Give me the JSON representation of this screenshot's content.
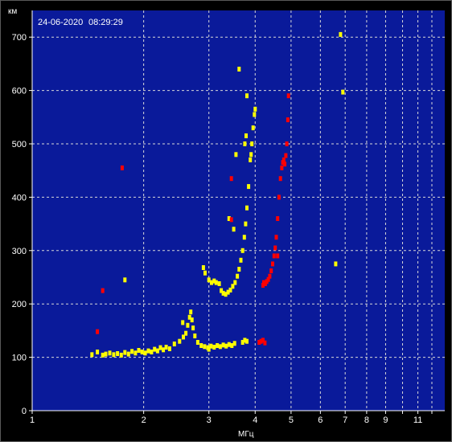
{
  "timestamp": {
    "date": "24-06-2020",
    "time": "08:29:29"
  },
  "colors": {
    "background": "#000000",
    "plot_area": "#0a1a9a",
    "grid": "#d8d8d8",
    "text": "#ffffff",
    "o_trace": "#ffff00",
    "x_trace": "#ff0000"
  },
  "chart_data": {
    "type": "scatter",
    "title": "",
    "x_scale": "log",
    "xlabel": "МГц",
    "ylabel": "км",
    "xlim": [
      1,
      13
    ],
    "ylim": [
      0,
      750
    ],
    "grid": true,
    "x_ticks": [
      {
        "value": 1,
        "label": "1"
      },
      {
        "value": 2,
        "label": "2"
      },
      {
        "value": 3,
        "label": "3"
      },
      {
        "value": 4,
        "label": "4"
      },
      {
        "value": 5,
        "label": "5"
      },
      {
        "value": 6,
        "label": "6"
      },
      {
        "value": 7,
        "label": "7"
      },
      {
        "value": 8,
        "label": "8"
      },
      {
        "value": 9,
        "label": "9"
      },
      {
        "value": 10,
        "label": ""
      },
      {
        "value": 11,
        "label": "11"
      },
      {
        "value": 12,
        "label": ""
      }
    ],
    "y_ticks": [
      {
        "value": 0,
        "label": "0"
      },
      {
        "value": 100,
        "label": "100"
      },
      {
        "value": 200,
        "label": "200"
      },
      {
        "value": 300,
        "label": "300"
      },
      {
        "value": 400,
        "label": "400"
      },
      {
        "value": 500,
        "label": "500"
      },
      {
        "value": 600,
        "label": "600"
      },
      {
        "value": 700,
        "label": "700"
      }
    ],
    "series": [
      {
        "color": "#ffff00",
        "points": [
          [
            1.45,
            105
          ],
          [
            1.55,
            104
          ],
          [
            1.58,
            106
          ],
          [
            1.62,
            108
          ],
          [
            1.66,
            105
          ],
          [
            1.7,
            107
          ],
          [
            1.74,
            104
          ],
          [
            1.78,
            109
          ],
          [
            1.82,
            106
          ],
          [
            1.86,
            111
          ],
          [
            1.9,
            108
          ],
          [
            1.94,
            113
          ],
          [
            1.98,
            110
          ],
          [
            2.02,
            108
          ],
          [
            2.06,
            112
          ],
          [
            2.1,
            110
          ],
          [
            2.14,
            115
          ],
          [
            2.18,
            112
          ],
          [
            2.22,
            118
          ],
          [
            2.26,
            114
          ],
          [
            2.3,
            119
          ],
          [
            2.35,
            116
          ],
          [
            2.42,
            125
          ],
          [
            2.5,
            130
          ],
          [
            2.56,
            138
          ],
          [
            2.6,
            145
          ],
          [
            2.63,
            160
          ],
          [
            2.66,
            175
          ],
          [
            2.68,
            185
          ],
          [
            2.7,
            170
          ],
          [
            2.72,
            155
          ],
          [
            2.75,
            140
          ],
          [
            2.8,
            128
          ],
          [
            2.86,
            122
          ],
          [
            2.92,
            120
          ],
          [
            2.98,
            118
          ],
          [
            3.04,
            121
          ],
          [
            3.1,
            119
          ],
          [
            3.16,
            122
          ],
          [
            3.22,
            120
          ],
          [
            3.28,
            123
          ],
          [
            3.34,
            121
          ],
          [
            3.4,
            124
          ],
          [
            3.46,
            122
          ],
          [
            3.52,
            126
          ],
          [
            3.7,
            128
          ],
          [
            3.75,
            132
          ],
          [
            3.8,
            130
          ],
          [
            2.9,
            268
          ],
          [
            2.93,
            258
          ],
          [
            3.0,
            245
          ],
          [
            3.05,
            240
          ],
          [
            3.1,
            243
          ],
          [
            3.14,
            240
          ],
          [
            3.2,
            238
          ],
          [
            3.24,
            225
          ],
          [
            3.28,
            220
          ],
          [
            3.33,
            218
          ],
          [
            3.38,
            222
          ],
          [
            3.43,
            226
          ],
          [
            3.48,
            233
          ],
          [
            3.53,
            240
          ],
          [
            3.58,
            252
          ],
          [
            3.62,
            265
          ],
          [
            3.66,
            282
          ],
          [
            3.7,
            300
          ],
          [
            3.74,
            325
          ],
          [
            3.77,
            350
          ],
          [
            3.8,
            380
          ],
          [
            3.84,
            420
          ],
          [
            3.88,
            470
          ],
          [
            3.92,
            500
          ],
          [
            3.95,
            530
          ],
          [
            3.98,
            555
          ],
          [
            4.0,
            565
          ],
          [
            3.75,
            500
          ],
          [
            3.78,
            515
          ],
          [
            3.8,
            590
          ],
          [
            3.62,
            640
          ],
          [
            3.55,
            480
          ],
          [
            3.4,
            360
          ],
          [
            3.5,
            340
          ],
          [
            1.5,
            110
          ],
          [
            1.78,
            245
          ],
          [
            2.55,
            165
          ],
          [
            3.0,
            115
          ],
          [
            3.9,
            480
          ],
          [
            6.6,
            275
          ],
          [
            6.9,
            597
          ],
          [
            6.8,
            705
          ]
        ]
      },
      {
        "color": "#ff0000",
        "points": [
          [
            4.2,
            235
          ],
          [
            4.22,
            240
          ],
          [
            4.26,
            238
          ],
          [
            4.3,
            242
          ],
          [
            4.34,
            246
          ],
          [
            4.38,
            252
          ],
          [
            4.42,
            262
          ],
          [
            4.46,
            275
          ],
          [
            4.5,
            290
          ],
          [
            4.53,
            305
          ],
          [
            4.56,
            325
          ],
          [
            4.6,
            360
          ],
          [
            4.64,
            400
          ],
          [
            4.68,
            435
          ],
          [
            4.72,
            455
          ],
          [
            4.75,
            465
          ],
          [
            4.78,
            470
          ],
          [
            4.81,
            462
          ],
          [
            4.84,
            478
          ],
          [
            4.87,
            500
          ],
          [
            4.9,
            545
          ],
          [
            4.92,
            590
          ],
          [
            4.1,
            128
          ],
          [
            4.15,
            130
          ],
          [
            4.2,
            132
          ],
          [
            4.25,
            127
          ],
          [
            1.75,
            455
          ],
          [
            1.55,
            225
          ],
          [
            1.5,
            148
          ],
          [
            3.45,
            358
          ],
          [
            3.45,
            435
          ],
          [
            4.6,
            290
          ]
        ]
      }
    ]
  }
}
